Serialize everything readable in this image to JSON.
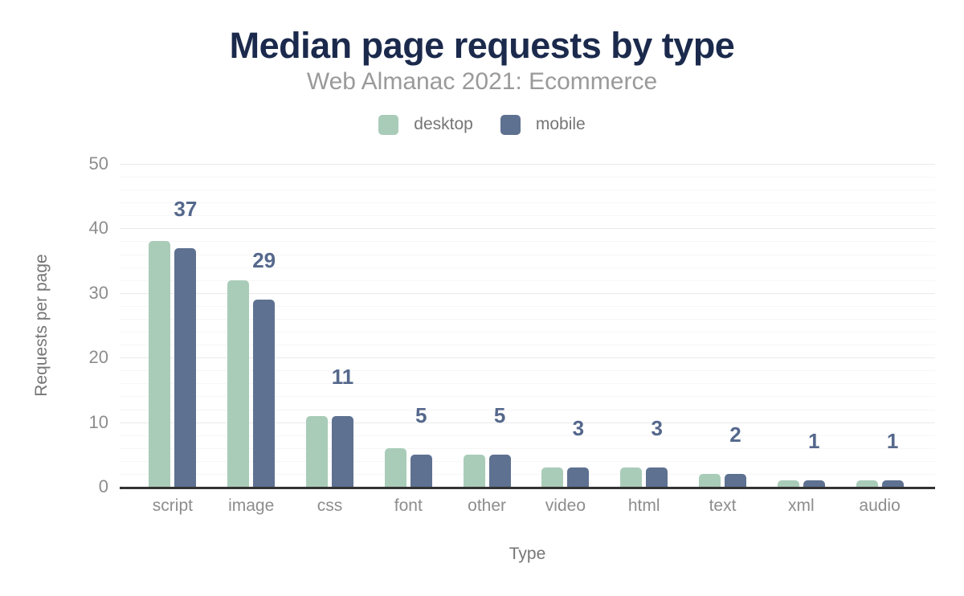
{
  "chart": {
    "title": "Median page requests by type",
    "subtitle": "Web Almanac 2021: Ecommerce",
    "ylabel": "Requests per page",
    "xlabel": "Type",
    "legend": [
      {
        "label": "desktop"
      },
      {
        "label": "mobile"
      }
    ],
    "colors": {
      "desktop": "#a9ccb9",
      "mobile": "#5e7191",
      "annotation": "#55688c",
      "title": "#1b2a4c",
      "subtitle_text": "#9a9a9a",
      "muted_text": "#757575",
      "axis_tick_text": "#8d8d8d",
      "axis_line": "#333333",
      "grid_major": "#eaeaea",
      "grid_minor": "#f6f6f6",
      "background": "#ffffff"
    }
  },
  "chart_data": {
    "type": "bar",
    "title": "Median page requests by type",
    "subtitle": "Web Almanac 2021: Ecommerce",
    "xlabel": "Type",
    "ylabel": "Requests per page",
    "categories": [
      "script",
      "image",
      "css",
      "font",
      "other",
      "video",
      "html",
      "text",
      "xml",
      "audio"
    ],
    "series": [
      {
        "name": "desktop",
        "values": [
          38,
          32,
          11,
          6,
          5,
          3,
          3,
          2,
          1,
          1
        ]
      },
      {
        "name": "mobile",
        "values": [
          37,
          29,
          11,
          5,
          5,
          3,
          3,
          2,
          1,
          1
        ]
      }
    ],
    "bar_labels": [
      37,
      29,
      11,
      5,
      5,
      3,
      3,
      2,
      1,
      1
    ],
    "bar_labels_series": "mobile",
    "ylim": [
      0,
      50
    ],
    "yticks": [
      0,
      10,
      20,
      30,
      40,
      50
    ],
    "minor_grid_step": 2,
    "grid": true,
    "legend_position": "top"
  }
}
